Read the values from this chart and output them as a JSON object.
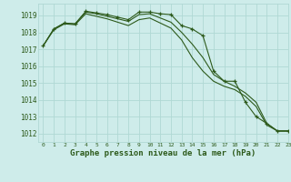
{
  "title": "Graphe pression niveau de la mer (hPa)",
  "background_color": "#ceecea",
  "grid_color": "#b0d8d4",
  "line_color": "#2d5a1b",
  "xlim": [
    -0.5,
    23
  ],
  "ylim": [
    1011.5,
    1019.7
  ],
  "yticks": [
    1012,
    1013,
    1014,
    1015,
    1016,
    1017,
    1018,
    1019
  ],
  "xticks": [
    0,
    1,
    2,
    3,
    4,
    5,
    6,
    7,
    8,
    9,
    10,
    11,
    12,
    13,
    14,
    15,
    16,
    17,
    18,
    19,
    20,
    21,
    22,
    23
  ],
  "series": [
    {
      "y": [
        1017.2,
        1018.2,
        1018.55,
        1018.5,
        1019.25,
        1019.15,
        1019.05,
        1018.9,
        1018.75,
        1019.2,
        1019.2,
        1019.1,
        1019.05,
        1018.4,
        1018.2,
        1017.8,
        1015.7,
        1015.1,
        1015.1,
        1013.85,
        1013.0,
        1012.6,
        1012.15,
        1012.15
      ],
      "has_markers": true
    },
    {
      "y": [
        1017.2,
        1018.2,
        1018.55,
        1018.5,
        1019.2,
        1019.1,
        1018.95,
        1018.8,
        1018.65,
        1019.05,
        1019.1,
        1018.85,
        1018.6,
        1018.0,
        1017.3,
        1016.5,
        1015.5,
        1015.1,
        1014.8,
        1014.4,
        1013.85,
        1012.6,
        1012.15,
        1012.15
      ],
      "has_markers": false
    },
    {
      "y": [
        1017.2,
        1018.15,
        1018.5,
        1018.45,
        1019.1,
        1018.95,
        1018.8,
        1018.6,
        1018.4,
        1018.75,
        1018.85,
        1018.55,
        1018.25,
        1017.55,
        1016.5,
        1015.7,
        1015.1,
        1014.8,
        1014.6,
        1014.2,
        1013.6,
        1012.5,
        1012.15,
        1012.15
      ],
      "has_markers": false
    }
  ]
}
